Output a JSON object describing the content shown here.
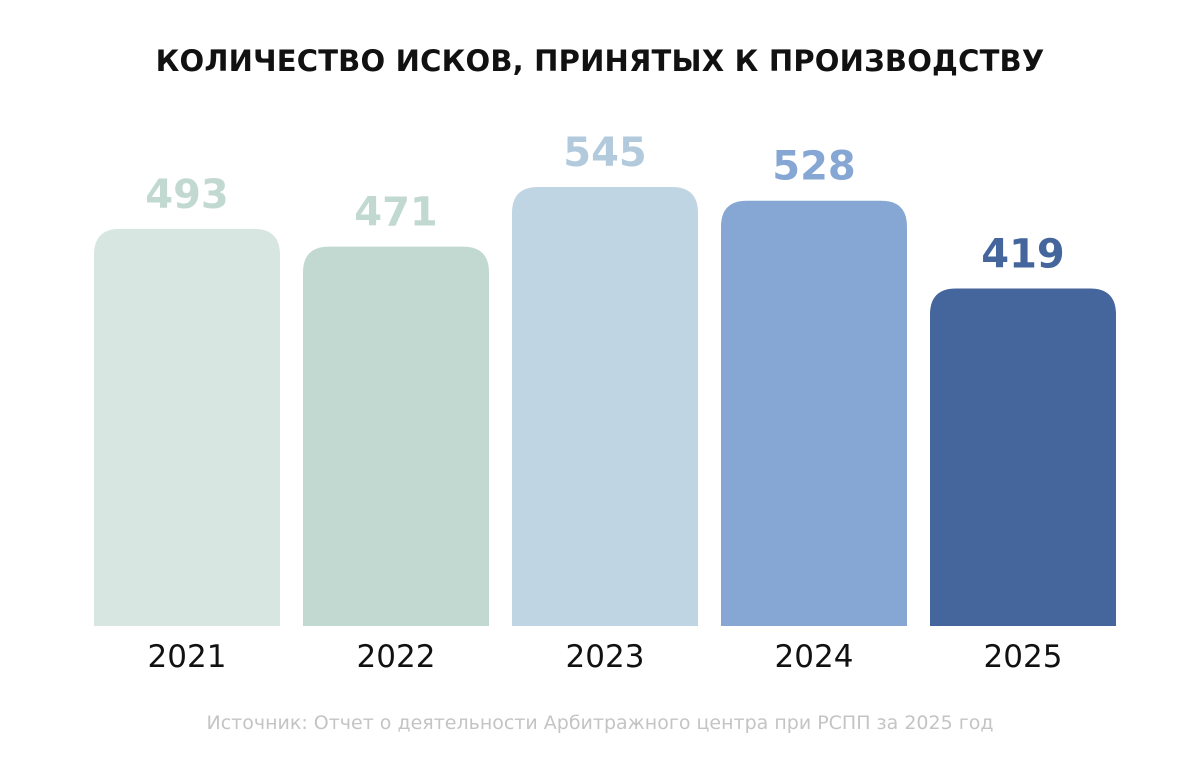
{
  "title": "КОЛИЧЕСТВО ИСКОВ, ПРИНЯТЫХ К ПРОИЗВОДСТВУ",
  "source": "Источник: Отчет о деятельности Арбитражного центра при РСПП за 2025 год",
  "chart_data": {
    "type": "bar",
    "title": "КОЛИЧЕСТВО ИСКОВ, ПРИНЯТЫХ К ПРОИЗВОДСТВУ",
    "categories": [
      "2021",
      "2022",
      "2023",
      "2024",
      "2025"
    ],
    "values": [
      493,
      471,
      545,
      528,
      419
    ],
    "value_labels": [
      "493",
      "471",
      "545",
      "528",
      "419"
    ],
    "bar_colors": [
      "#d7e6e0",
      "#c2d9d2",
      "#c0d5e3",
      "#86a7d3",
      "#44669d"
    ],
    "label_colors": [
      "#c2d9d2",
      "#c2d9d2",
      "#b2cadc",
      "#86a7d3",
      "#44669d"
    ],
    "xlabel": "",
    "ylabel": "",
    "ylim": [
      0,
      545
    ],
    "grid": false,
    "legend": "none"
  }
}
